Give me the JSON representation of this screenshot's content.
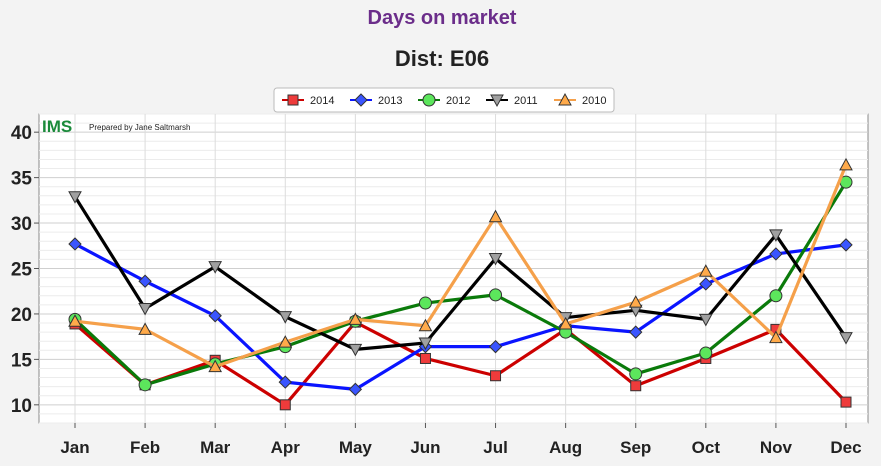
{
  "chart_data": {
    "type": "line",
    "title": "Days on market",
    "subtitle": "Dist: E06",
    "brand": "IMS",
    "prepared_by": "Prepared by Jane Saltmarsh",
    "categories": [
      "Jan",
      "Feb",
      "Mar",
      "Apr",
      "May",
      "Jun",
      "Jul",
      "Aug",
      "Sep",
      "Oct",
      "Nov",
      "Dec"
    ],
    "ylim": [
      8,
      42
    ],
    "yticks": [
      10,
      15,
      20,
      25,
      30,
      35,
      40
    ],
    "grid": true,
    "legend_position": "top-center",
    "colors": {
      "title": "#6b2d8a",
      "brand": "#1a8a3a",
      "plot_bg": "#ffffff",
      "grid": "#d9d9d9"
    },
    "series": [
      {
        "name": "2014",
        "color": "#cc0000",
        "marker": "square",
        "marker_fill": "#ee3b3b",
        "values": [
          18.9,
          12.2,
          14.9,
          10.0,
          19.1,
          15.1,
          13.2,
          18.3,
          12.1,
          15.1,
          18.3,
          10.3
        ]
      },
      {
        "name": "2013",
        "color": "#0a14ff",
        "marker": "diamond",
        "marker_fill": "#3a55ff",
        "values": [
          27.7,
          23.6,
          19.8,
          12.5,
          11.7,
          16.4,
          16.4,
          18.7,
          18.0,
          23.3,
          26.6,
          27.6
        ]
      },
      {
        "name": "2012",
        "color": "#0a7a0a",
        "marker": "circle",
        "marker_fill": "#5ce65c",
        "values": [
          19.4,
          12.2,
          14.5,
          16.4,
          19.2,
          21.2,
          22.1,
          18.0,
          13.4,
          15.7,
          22.0,
          34.5
        ]
      },
      {
        "name": "2011",
        "color": "#000000",
        "marker": "triangle-down",
        "marker_fill": "#a0a0a0",
        "values": [
          32.9,
          20.6,
          25.2,
          19.7,
          16.1,
          16.8,
          26.1,
          19.6,
          20.4,
          19.4,
          28.7,
          17.4
        ]
      },
      {
        "name": "2010",
        "color": "#f5a04a",
        "marker": "triangle-up",
        "marker_fill": "#ffaa4a",
        "values": [
          19.2,
          18.3,
          14.2,
          16.9,
          19.4,
          18.7,
          30.7,
          18.9,
          21.3,
          24.7,
          17.4,
          36.4
        ]
      }
    ]
  }
}
